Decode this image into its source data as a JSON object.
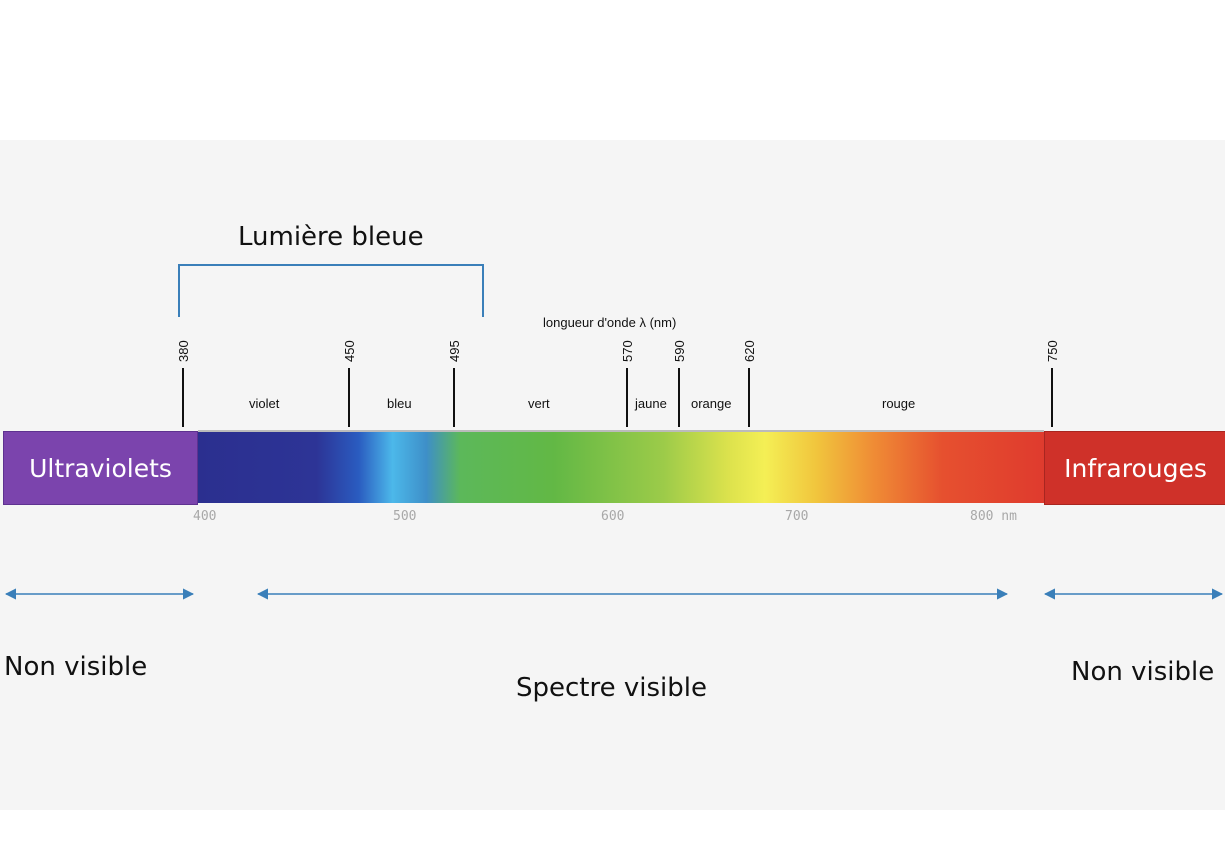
{
  "title": "Lumière bleue",
  "axis_label": "longueur d'onde λ (nm)",
  "boundaries": [
    "380",
    "450",
    "495",
    "570",
    "590",
    "620",
    "750"
  ],
  "color_bands": [
    "violet",
    "bleu",
    "vert",
    "jaune",
    "orange",
    "rouge"
  ],
  "regions": {
    "left": "Ultraviolets",
    "right": "Infrarouges"
  },
  "scale_labels": [
    "400",
    "500",
    "600",
    "700",
    "800 nm"
  ],
  "captions": {
    "left": "Non visible",
    "center": "Spectre visible",
    "right": "Non visible"
  },
  "colors": {
    "ultraviolet_box": "#7b44ad",
    "infrared_box": "#cf3129",
    "arrows": "#3a7fb9",
    "bracket": "#3a7fb9"
  }
}
